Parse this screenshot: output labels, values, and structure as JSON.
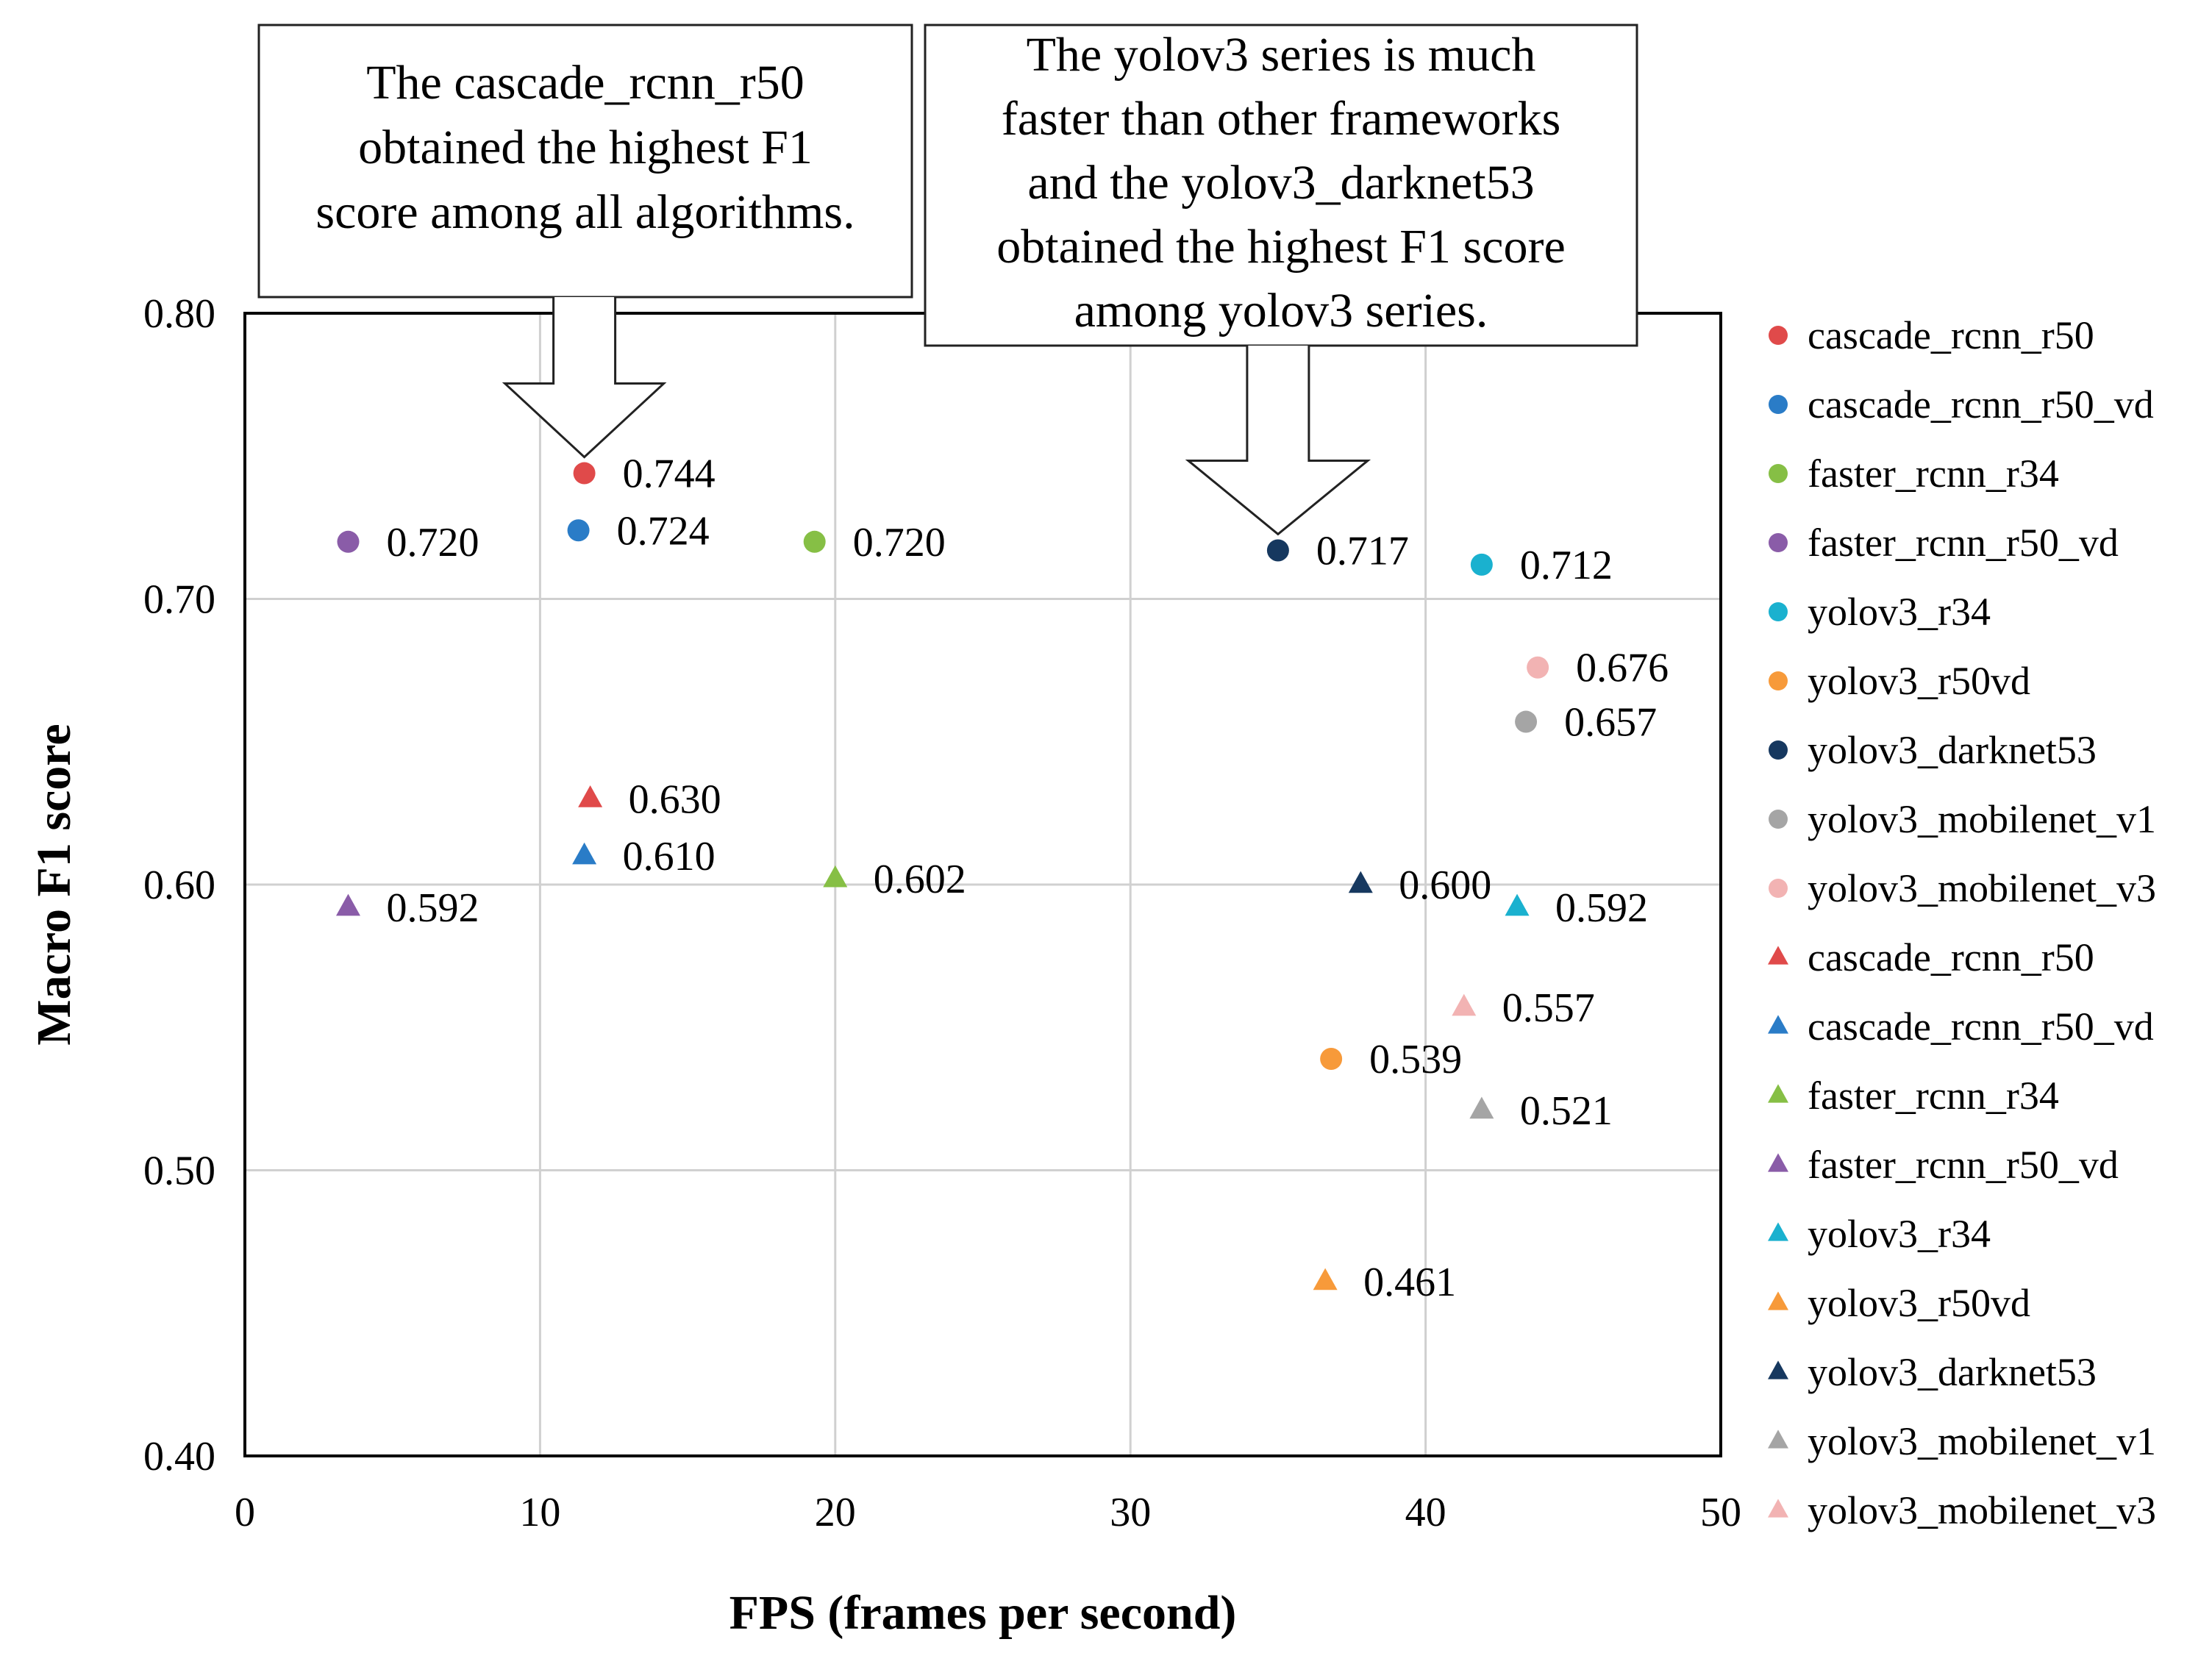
{
  "chart_data": {
    "type": "scatter",
    "xlabel": "FPS (frames per second)",
    "ylabel": "Macro F1 score",
    "xlim": [
      0,
      50
    ],
    "ylim": [
      0.4,
      0.8
    ],
    "xticks": [
      "0",
      "10",
      "20",
      "30",
      "40",
      "50"
    ],
    "yticks": [
      "0.40",
      "0.50",
      "0.60",
      "0.70",
      "0.80"
    ],
    "grid": true,
    "legend_position": "right",
    "colors": {
      "cascade_rcnn_r50": "#e04a4a",
      "cascade_rcnn_r50_vd": "#2a7cc7",
      "faster_rcnn_r34": "#86bf45",
      "faster_rcnn_r50_vd": "#8a5ca8",
      "yolov3_r34": "#1ab1cf",
      "yolov3_r50vd": "#f79a3a",
      "yolov3_darknet53": "#16385f",
      "yolov3_mobilenet_v1": "#a5a5a5",
      "yolov3_mobilenet_v3": "#f2b3b3"
    },
    "series": [
      {
        "name": "cascade_rcnn_r50",
        "marker": "circle",
        "x": 11.5,
        "y": 0.744,
        "label": "0.744"
      },
      {
        "name": "cascade_rcnn_r50_vd",
        "marker": "circle",
        "x": 11.3,
        "y": 0.724,
        "label": "0.724"
      },
      {
        "name": "faster_rcnn_r34",
        "marker": "circle",
        "x": 19.3,
        "y": 0.72,
        "label": "0.720"
      },
      {
        "name": "faster_rcnn_r50_vd",
        "marker": "circle",
        "x": 3.5,
        "y": 0.72,
        "label": "0.720"
      },
      {
        "name": "yolov3_r34",
        "marker": "circle",
        "x": 41.9,
        "y": 0.712,
        "label": "0.712"
      },
      {
        "name": "yolov3_r50vd",
        "marker": "circle",
        "x": 36.8,
        "y": 0.539,
        "label": "0.539"
      },
      {
        "name": "yolov3_darknet53",
        "marker": "circle",
        "x": 35.0,
        "y": 0.717,
        "label": "0.717"
      },
      {
        "name": "yolov3_mobilenet_v1",
        "marker": "circle",
        "x": 43.4,
        "y": 0.657,
        "label": "0.657"
      },
      {
        "name": "yolov3_mobilenet_v3",
        "marker": "circle",
        "x": 43.8,
        "y": 0.676,
        "label": "0.676"
      },
      {
        "name": "cascade_rcnn_r50",
        "marker": "triangle",
        "x": 11.7,
        "y": 0.63,
        "label": "0.630"
      },
      {
        "name": "cascade_rcnn_r50_vd",
        "marker": "triangle",
        "x": 11.5,
        "y": 0.61,
        "label": "0.610"
      },
      {
        "name": "faster_rcnn_r34",
        "marker": "triangle",
        "x": 20.0,
        "y": 0.602,
        "label": "0.602"
      },
      {
        "name": "faster_rcnn_r50_vd",
        "marker": "triangle",
        "x": 3.5,
        "y": 0.592,
        "label": "0.592"
      },
      {
        "name": "yolov3_r34",
        "marker": "triangle",
        "x": 43.1,
        "y": 0.592,
        "label": "0.592"
      },
      {
        "name": "yolov3_r50vd",
        "marker": "triangle",
        "x": 36.6,
        "y": 0.461,
        "label": "0.461"
      },
      {
        "name": "yolov3_darknet53",
        "marker": "triangle",
        "x": 37.8,
        "y": 0.6,
        "label": "0.600"
      },
      {
        "name": "yolov3_mobilenet_v1",
        "marker": "triangle",
        "x": 41.9,
        "y": 0.521,
        "label": "0.521"
      },
      {
        "name": "yolov3_mobilenet_v3",
        "marker": "triangle",
        "x": 41.3,
        "y": 0.557,
        "label": "0.557"
      }
    ],
    "annotations": [
      {
        "id": "left",
        "lines": [
          "The cascade_rcnn_r50",
          "obtained the highest F1",
          "score among all algorithms."
        ],
        "target_x": 11.5,
        "target_y": 0.744
      },
      {
        "id": "right",
        "lines": [
          "The yolov3 series is much",
          "faster than other frameworks",
          "and the yolov3_darknet53",
          "obtained the highest F1 score",
          "among yolov3 series."
        ],
        "target_x": 35.0,
        "target_y": 0.717
      }
    ]
  }
}
